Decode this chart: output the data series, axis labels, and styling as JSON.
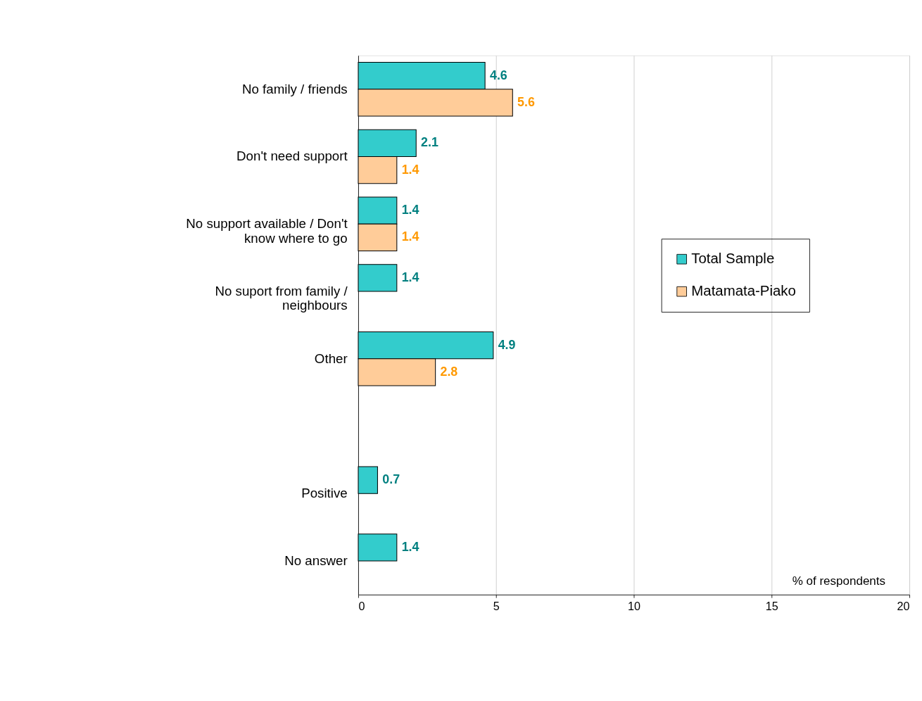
{
  "chart_data": {
    "type": "bar",
    "orientation": "horizontal",
    "xlabel": "% of respondents",
    "categories": [
      "No family / friends",
      "Don't need support",
      "No support available / Don't know where to go",
      "No suport from family / neighbours",
      "Other",
      null,
      "Positive",
      "No answer"
    ],
    "series": [
      {
        "name": "Total Sample",
        "color": "#33cccc",
        "values": [
          4.6,
          2.1,
          1.4,
          1.4,
          4.9,
          null,
          0.7,
          1.4
        ]
      },
      {
        "name": "Matamata-Piako",
        "color": "#ffcc99",
        "values": [
          5.6,
          1.4,
          1.4,
          null,
          2.8,
          null,
          null,
          null
        ]
      }
    ],
    "xlim": [
      0,
      20
    ],
    "xticks": [
      0,
      5,
      10,
      15,
      20
    ],
    "grid": "x",
    "legend": "right",
    "data_labels": true
  }
}
